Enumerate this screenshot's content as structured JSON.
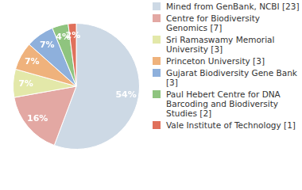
{
  "chart_data": {
    "type": "pie",
    "categories": [
      "Mined from GenBank, NCBI [23]",
      "Centre for Biodiversity Genomics [7]",
      "Sri Ramaswamy Memorial University [3]",
      "Princeton University [3]",
      "Gujarat Biodiversity Gene Bank [3]",
      "Paul Hebert Centre for DNA Barcoding and Biodiversity Studies [2]",
      "Vale Institute of Technology [1]"
    ],
    "values": [
      54,
      16,
      7,
      7,
      7,
      4,
      2
    ],
    "value_labels": [
      "54%",
      "16%",
      "7%",
      "7%",
      "7%",
      "4%",
      "2%"
    ],
    "colors": [
      "#cdd9e5",
      "#e3a8a3",
      "#e3e8a9",
      "#efb27c",
      "#8eb0dc",
      "#8fc47f",
      "#e0705b"
    ],
    "data_labels": true,
    "legend": "right"
  }
}
